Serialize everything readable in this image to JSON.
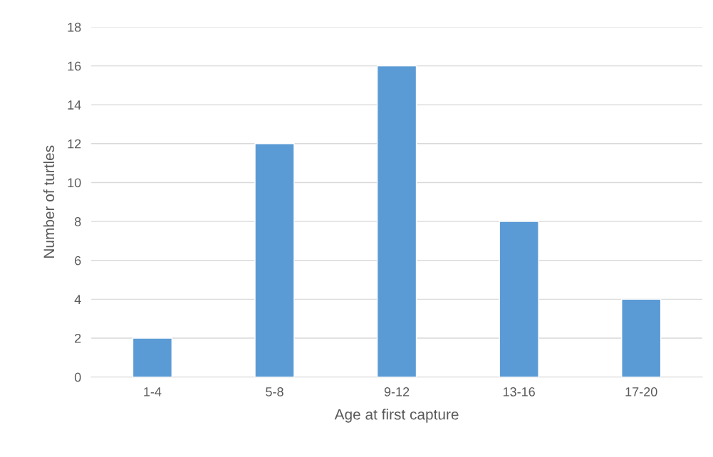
{
  "chart_data": {
    "type": "bar",
    "xlabel": "Age at first capture",
    "ylabel": "Number of turtles",
    "categories": [
      "1-4",
      "5-8",
      "9-12",
      "13-16",
      "17-20"
    ],
    "values": [
      2,
      12,
      16,
      8,
      4
    ],
    "color": "#5b9bd5",
    "ylim": [
      0,
      18
    ],
    "yticks": [
      0,
      2,
      4,
      6,
      8,
      10,
      12,
      14,
      16,
      18
    ],
    "grid": "y",
    "legend": false
  }
}
